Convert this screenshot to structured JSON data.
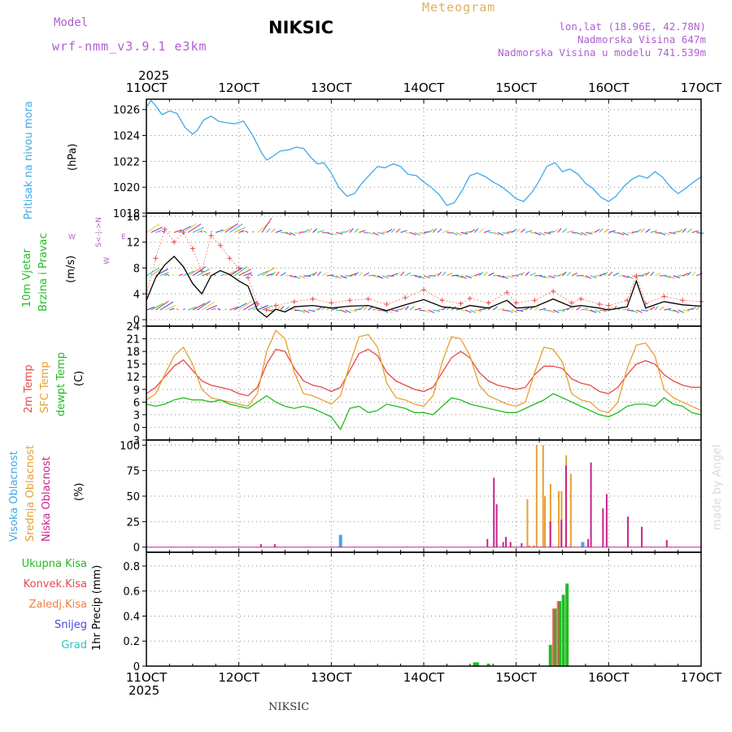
{
  "header": {
    "model_label": "Model",
    "model_name": "wrf-nmm_v3.9.1 e3km",
    "station": "NIKSIC",
    "title": "Meteogram",
    "coords": "lon,lat (18.96E, 42.78N)",
    "altitude": "Nadmorska Visina 647m",
    "model_altitude": "Nadmorska Visina u modelu 741.539m",
    "year": "2025"
  },
  "footer": {
    "station": "NIKSIC",
    "watermark": "made by Angel"
  },
  "labels": {
    "pressure": "Pritisak na nivou mora",
    "pressure_unit": "(hPa)",
    "wind_1": "10m Vjetar",
    "wind_2": "Brzina i Pravac",
    "wind_unit": "(m/s)",
    "compass_w": "W",
    "compass_e": "E",
    "compass_ns": "S<-|->N",
    "compass_we": "W",
    "temp_2m": "2m Temp",
    "temp_sfc": "SFC Temp",
    "dewpoint": "dewpt Temp",
    "temp_unit": "(C)",
    "cloud_high": "Visoka Oblacnost",
    "cloud_mid": "Srednja Oblacnost",
    "cloud_low": "Niska Oblacnost",
    "cloud_unit": "(%)",
    "precip_total": "Ukupna Kisa",
    "precip_conv": "Konvek.Kisa",
    "precip_freez": "Zaledj.Kisa",
    "precip_snow": "Snijeg",
    "precip_hail": "Grad",
    "precip_unit": "1hr Precip (mm)"
  },
  "colors": {
    "pressure": "#3fa9e6",
    "temp_2m": "#e84848",
    "temp_sfc": "#e6a030",
    "dewpoint": "#22bb22",
    "cloud_high": "#3fa9e6",
    "cloud_mid": "#e6a030",
    "cloud_low": "#c8238e",
    "precip_total": "#22bb22",
    "precip_conv": "#e84848",
    "precip_freez": "#f08040",
    "wind_speed": "#000000",
    "wind_gust": "#e84848",
    "wind_arrow_palette": [
      "#6a2ee0",
      "#3a6af0",
      "#20c0d0",
      "#30d070",
      "#c0e040",
      "#f0a020",
      "#e83a3a",
      "#e020a0"
    ]
  },
  "chart_data": {
    "x_ticks": [
      "11OCT",
      "12OCT",
      "13OCT",
      "14OCT",
      "15OCT",
      "16OCT",
      "17OCT"
    ],
    "x_range_days": [
      0,
      6
    ],
    "panels": [
      {
        "id": "pressure",
        "type": "line",
        "ylim": [
          1018,
          1026.8
        ],
        "yticks": [
          1018,
          1020,
          1022,
          1024,
          1026
        ],
        "series": [
          {
            "name": "Pritisak na nivou mora",
            "x": [
              0,
              0.05,
              0.1,
              0.17,
              0.25,
              0.33,
              0.42,
              0.5,
              0.55,
              0.62,
              0.7,
              0.78,
              0.85,
              0.95,
              1.05,
              1.15,
              1.25,
              1.3,
              1.35,
              1.45,
              1.55,
              1.62,
              1.7,
              1.78,
              1.85,
              1.92,
              2.0,
              2.08,
              2.17,
              2.25,
              2.33,
              2.42,
              2.5,
              2.58,
              2.67,
              2.75,
              2.83,
              2.92,
              3.0,
              3.08,
              3.17,
              3.25,
              3.33,
              3.42,
              3.5,
              3.58,
              3.67,
              3.75,
              3.83,
              3.92,
              4.0,
              4.08,
              4.17,
              4.25,
              4.33,
              4.42,
              4.5,
              4.58,
              4.67,
              4.75,
              4.83,
              4.92,
              5.0,
              5.08,
              5.17,
              5.25,
              5.33,
              5.42,
              5.5,
              5.58,
              5.67,
              5.75,
              5.83,
              5.92,
              6.0
            ],
            "values": [
              1026.2,
              1026.7,
              1026.3,
              1025.6,
              1025.9,
              1025.7,
              1024.6,
              1024.1,
              1024.4,
              1025.2,
              1025.5,
              1025.1,
              1025.0,
              1024.9,
              1025.1,
              1024.0,
              1022.6,
              1022.1,
              1022.3,
              1022.8,
              1022.9,
              1023.1,
              1023.0,
              1022.3,
              1021.8,
              1021.9,
              1021.1,
              1020.0,
              1019.3,
              1019.5,
              1020.3,
              1021.0,
              1021.6,
              1021.5,
              1021.8,
              1021.6,
              1021.0,
              1020.9,
              1020.4,
              1020.0,
              1019.4,
              1018.6,
              1018.8,
              1019.8,
              1020.9,
              1021.1,
              1020.8,
              1020.4,
              1020.1,
              1019.6,
              1019.1,
              1018.9,
              1019.6,
              1020.5,
              1021.6,
              1021.9,
              1021.2,
              1021.4,
              1021.0,
              1020.3,
              1019.9,
              1019.2,
              1018.9,
              1019.3,
              1020.1,
              1020.6,
              1020.9,
              1020.7,
              1021.2,
              1020.8,
              1020.0,
              1019.5,
              1019.9,
              1020.4,
              1020.8
            ]
          }
        ]
      },
      {
        "id": "wind",
        "type": "line",
        "ylim": [
          -1,
          16.5
        ],
        "yticks": [
          0,
          4,
          8,
          12,
          16
        ],
        "series": [
          {
            "name": "speed",
            "x": [
              0,
              0.1,
              0.2,
              0.3,
              0.4,
              0.5,
              0.6,
              0.7,
              0.8,
              0.9,
              1.0,
              1.1,
              1.2,
              1.3,
              1.4,
              1.5,
              1.6,
              1.8,
              2.0,
              2.2,
              2.4,
              2.6,
              2.8,
              3.0,
              3.2,
              3.4,
              3.5,
              3.7,
              3.9,
              4.0,
              4.2,
              4.4,
              4.6,
              4.7,
              4.9,
              5.0,
              5.2,
              5.3,
              5.4,
              5.6,
              5.8,
              6.0
            ],
            "values": [
              3.0,
              6.5,
              8.5,
              9.8,
              8.2,
              5.6,
              4.0,
              6.8,
              7.6,
              7.0,
              6.0,
              5.2,
              1.5,
              0.4,
              1.6,
              1.2,
              2.0,
              2.2,
              1.8,
              2.1,
              2.2,
              1.4,
              2.3,
              3.1,
              2.0,
              1.7,
              2.2,
              1.8,
              3.0,
              1.8,
              2.0,
              3.2,
              2.0,
              2.2,
              1.8,
              1.5,
              2.0,
              6.0,
              1.8,
              2.8,
              2.3,
              2.1
            ]
          },
          {
            "name": "gust",
            "x": [
              0,
              0.1,
              0.2,
              0.3,
              0.4,
              0.5,
              0.6,
              0.7,
              0.8,
              0.9,
              1.0,
              1.1,
              1.2,
              1.3,
              1.4,
              1.6,
              1.8,
              2.0,
              2.2,
              2.4,
              2.6,
              2.8,
              3.0,
              3.2,
              3.4,
              3.5,
              3.7,
              3.9,
              4.0,
              4.2,
              4.4,
              4.6,
              4.7,
              4.9,
              5.0,
              5.2,
              5.3,
              5.4,
              5.6,
              5.8,
              6.0
            ],
            "values": [
              4.0,
              9.5,
              14.0,
              12.0,
              13.5,
              11.0,
              7.5,
              13.0,
              11.5,
              9.5,
              8.0,
              6.5,
              2.5,
              1.5,
              2.2,
              2.8,
              3.2,
              2.6,
              3.0,
              3.2,
              2.4,
              3.4,
              4.6,
              3.0,
              2.5,
              3.3,
              2.6,
              4.2,
              2.6,
              3.0,
              4.4,
              2.6,
              3.2,
              2.4,
              2.2,
              3.0,
              6.8,
              2.5,
              3.6,
              3.0,
              2.8
            ]
          }
        ],
        "arrow_rows": [
          1.5,
          6.8,
          13.5
        ]
      },
      {
        "id": "temperature",
        "type": "line",
        "ylim": [
          -3,
          24
        ],
        "yticks": [
          -3,
          0,
          3,
          6,
          9,
          12,
          15,
          18,
          21,
          24
        ],
        "series": [
          {
            "name": "2m Temp",
            "x": [
              0,
              0.1,
              0.2,
              0.3,
              0.4,
              0.5,
              0.6,
              0.7,
              0.8,
              0.9,
              1.0,
              1.1,
              1.2,
              1.3,
              1.4,
              1.5,
              1.6,
              1.7,
              1.8,
              1.9,
              2.0,
              2.1,
              2.2,
              2.3,
              2.4,
              2.5,
              2.6,
              2.7,
              2.8,
              2.9,
              3.0,
              3.1,
              3.2,
              3.3,
              3.4,
              3.5,
              3.6,
              3.7,
              3.8,
              3.9,
              4.0,
              4.1,
              4.2,
              4.3,
              4.4,
              4.5,
              4.6,
              4.7,
              4.8,
              4.9,
              5.0,
              5.1,
              5.2,
              5.3,
              5.4,
              5.5,
              5.6,
              5.7,
              5.8,
              5.9,
              6.0
            ],
            "values": [
              8.0,
              9.5,
              12.0,
              14.5,
              16.0,
              13.5,
              11.0,
              10.0,
              9.5,
              9.0,
              8.0,
              7.5,
              9.5,
              15.0,
              18.5,
              18.0,
              14.0,
              11.0,
              10.0,
              9.5,
              8.5,
              9.5,
              13.5,
              17.5,
              18.5,
              17.0,
              13.0,
              11.0,
              10.0,
              9.0,
              8.5,
              9.5,
              13.0,
              16.5,
              18.0,
              16.5,
              13.0,
              11.0,
              10.0,
              9.5,
              9.0,
              9.5,
              12.5,
              14.5,
              14.5,
              14.0,
              11.5,
              10.5,
              10.0,
              8.5,
              8.0,
              9.5,
              12.5,
              15.0,
              15.8,
              15.0,
              12.5,
              11.0,
              10.0,
              9.5,
              9.5
            ]
          },
          {
            "name": "SFC Temp",
            "x": [
              0,
              0.1,
              0.2,
              0.3,
              0.4,
              0.5,
              0.6,
              0.7,
              0.8,
              0.9,
              1.0,
              1.1,
              1.2,
              1.3,
              1.4,
              1.5,
              1.6,
              1.7,
              1.8,
              1.9,
              2.0,
              2.1,
              2.2,
              2.3,
              2.4,
              2.5,
              2.6,
              2.7,
              2.8,
              2.9,
              3.0,
              3.1,
              3.2,
              3.3,
              3.4,
              3.5,
              3.6,
              3.7,
              3.8,
              3.9,
              4.0,
              4.1,
              4.2,
              4.3,
              4.4,
              4.5,
              4.6,
              4.7,
              4.8,
              4.9,
              5.0,
              5.1,
              5.2,
              5.3,
              5.4,
              5.5,
              5.6,
              5.7,
              5.8,
              5.9,
              6.0
            ],
            "values": [
              6.5,
              8.0,
              12.5,
              17.0,
              19.0,
              15.0,
              9.0,
              7.0,
              6.5,
              6.0,
              5.5,
              5.0,
              8.0,
              18.0,
              23.0,
              21.0,
              13.0,
              8.0,
              7.5,
              6.5,
              5.5,
              7.5,
              15.0,
              21.5,
              22.0,
              19.0,
              10.5,
              7.0,
              6.5,
              5.5,
              5.0,
              7.5,
              15.5,
              21.5,
              21.0,
              17.0,
              10.0,
              7.5,
              6.5,
              5.5,
              5.0,
              6.0,
              13.0,
              19.0,
              18.5,
              15.5,
              8.0,
              6.5,
              6.0,
              4.0,
              3.5,
              6.0,
              14.0,
              19.5,
              20.0,
              17.0,
              9.0,
              7.0,
              6.0,
              5.0,
              4.0
            ]
          },
          {
            "name": "dewpt Temp",
            "x": [
              0,
              0.1,
              0.2,
              0.3,
              0.4,
              0.5,
              0.6,
              0.7,
              0.8,
              0.9,
              1.0,
              1.1,
              1.2,
              1.3,
              1.4,
              1.5,
              1.6,
              1.7,
              1.8,
              1.9,
              2.0,
              2.1,
              2.2,
              2.3,
              2.4,
              2.5,
              2.6,
              2.7,
              2.8,
              2.9,
              3.0,
              3.1,
              3.2,
              3.3,
              3.4,
              3.5,
              3.6,
              3.7,
              3.8,
              3.9,
              4.0,
              4.1,
              4.2,
              4.3,
              4.4,
              4.5,
              4.6,
              4.7,
              4.8,
              4.9,
              5.0,
              5.1,
              5.2,
              5.3,
              5.4,
              5.5,
              5.6,
              5.7,
              5.8,
              5.9,
              6.0
            ],
            "values": [
              5.5,
              5.0,
              5.5,
              6.5,
              7.0,
              6.5,
              6.5,
              6.0,
              6.5,
              5.5,
              5.0,
              4.5,
              6.0,
              7.5,
              6.0,
              5.0,
              4.5,
              5.0,
              4.5,
              3.5,
              2.5,
              -0.5,
              4.5,
              5.0,
              3.5,
              4.0,
              5.5,
              5.0,
              4.5,
              3.5,
              3.5,
              3.0,
              5.0,
              7.0,
              6.5,
              5.5,
              5.0,
              4.5,
              4.0,
              3.5,
              3.5,
              4.5,
              5.5,
              6.5,
              8.0,
              7.0,
              6.0,
              5.0,
              4.0,
              3.0,
              2.5,
              3.5,
              5.0,
              5.5,
              5.5,
              5.0,
              7.0,
              5.5,
              5.0,
              3.5,
              3.0
            ]
          }
        ]
      },
      {
        "id": "clouds",
        "type": "bar",
        "ylim": [
          -5,
          105
        ],
        "yticks": [
          0,
          25,
          50,
          75,
          100
        ],
        "series": [
          {
            "name": "Visoka Oblacnost",
            "x": [
              2.1,
              4.72
            ],
            "values": [
              12,
              5
            ]
          },
          {
            "name": "Srednja Oblacnost",
            "x": [
              4.13,
              4.15,
              4.2,
              4.23,
              4.3,
              4.32,
              4.38,
              4.47,
              4.5,
              4.55,
              4.6
            ],
            "values": [
              47,
              2,
              2,
              100,
              100,
              50,
              62,
              55,
              55,
              90,
              72
            ]
          },
          {
            "name": "Niska Oblacnost",
            "x": [
              1.23,
              1.38,
              3.68,
              3.75,
              3.78,
              3.85,
              3.88,
              3.93,
              4.05,
              4.36,
              4.48,
              4.53,
              4.77,
              4.8,
              4.93,
              4.97,
              5.2,
              5.35,
              5.62
            ],
            "values": [
              3,
              3,
              8,
              68,
              42,
              5,
              10,
              5,
              4,
              25,
              27,
              80,
              8,
              83,
              38,
              52,
              30,
              20,
              7
            ]
          }
        ]
      },
      {
        "id": "precipitation",
        "type": "bar",
        "ylim": [
          0,
          0.91
        ],
        "yticks": [
          0,
          0.2,
          0.4,
          0.6,
          0.8
        ],
        "series": [
          {
            "name": "Ukupna Kisa",
            "x": [
              3.55,
              3.58,
              3.7,
              4.37,
              4.42,
              4.47,
              4.51,
              4.55
            ],
            "values": [
              0.03,
              0.03,
              0.02,
              0.17,
              0.46,
              0.52,
              0.57,
              0.66
            ]
          },
          {
            "name": "Konvek.Kisa",
            "x": [
              4.42,
              4.47
            ],
            "values": [
              0.46,
              0.52
            ]
          }
        ]
      }
    ]
  }
}
